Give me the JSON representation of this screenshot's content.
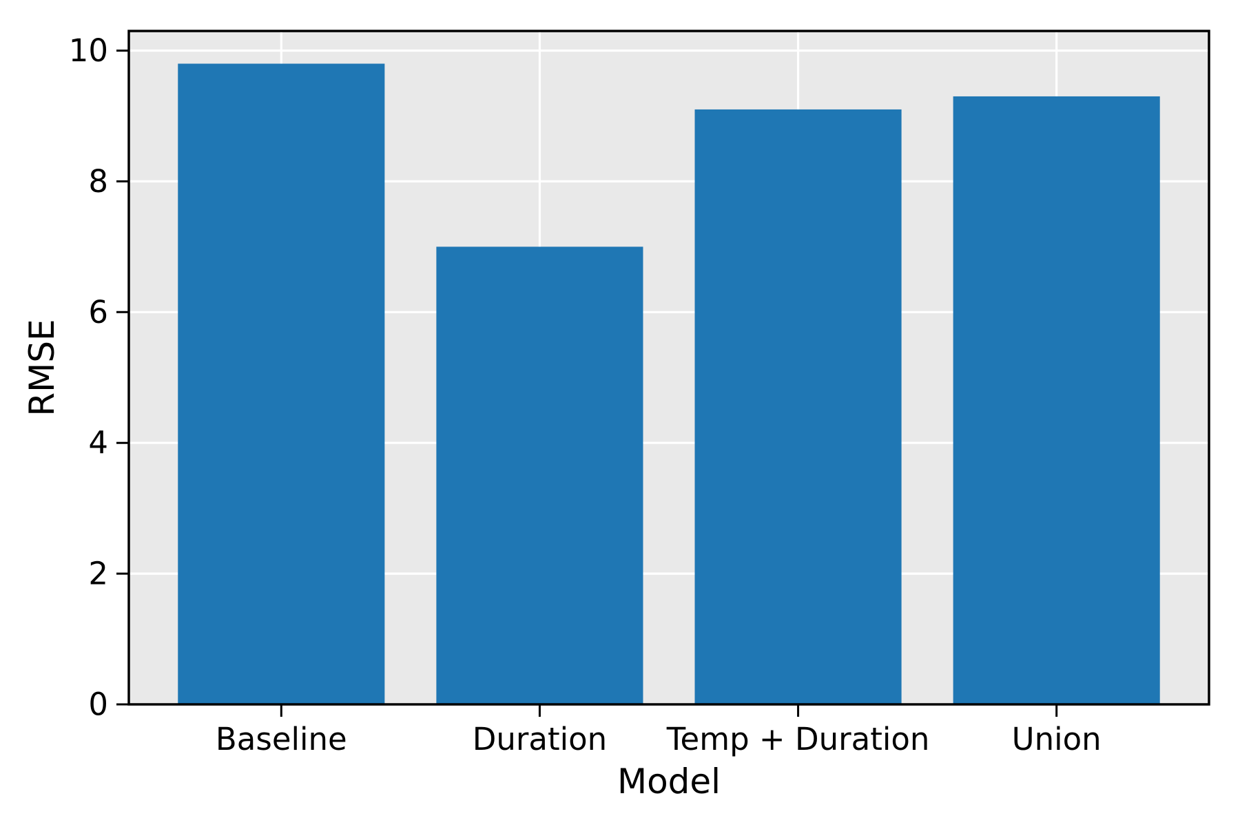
{
  "chart_data": {
    "type": "bar",
    "categories": [
      "Baseline",
      "Duration",
      "Temp + Duration",
      "Union"
    ],
    "values": [
      9.8,
      7.0,
      9.1,
      9.3
    ],
    "title": "",
    "xlabel": "Model",
    "ylabel": "RMSE",
    "yticks": [
      0,
      2,
      4,
      6,
      8,
      10
    ],
    "ylim": [
      0,
      10.3
    ],
    "legend": null,
    "grid": "on",
    "grid_color": "#ffffff",
    "plot_background": "#e9e9e9",
    "figure_background": "#ffffff",
    "bar_color": "#1f77b4",
    "spine_color": "#000000",
    "text_color": "#000000"
  }
}
